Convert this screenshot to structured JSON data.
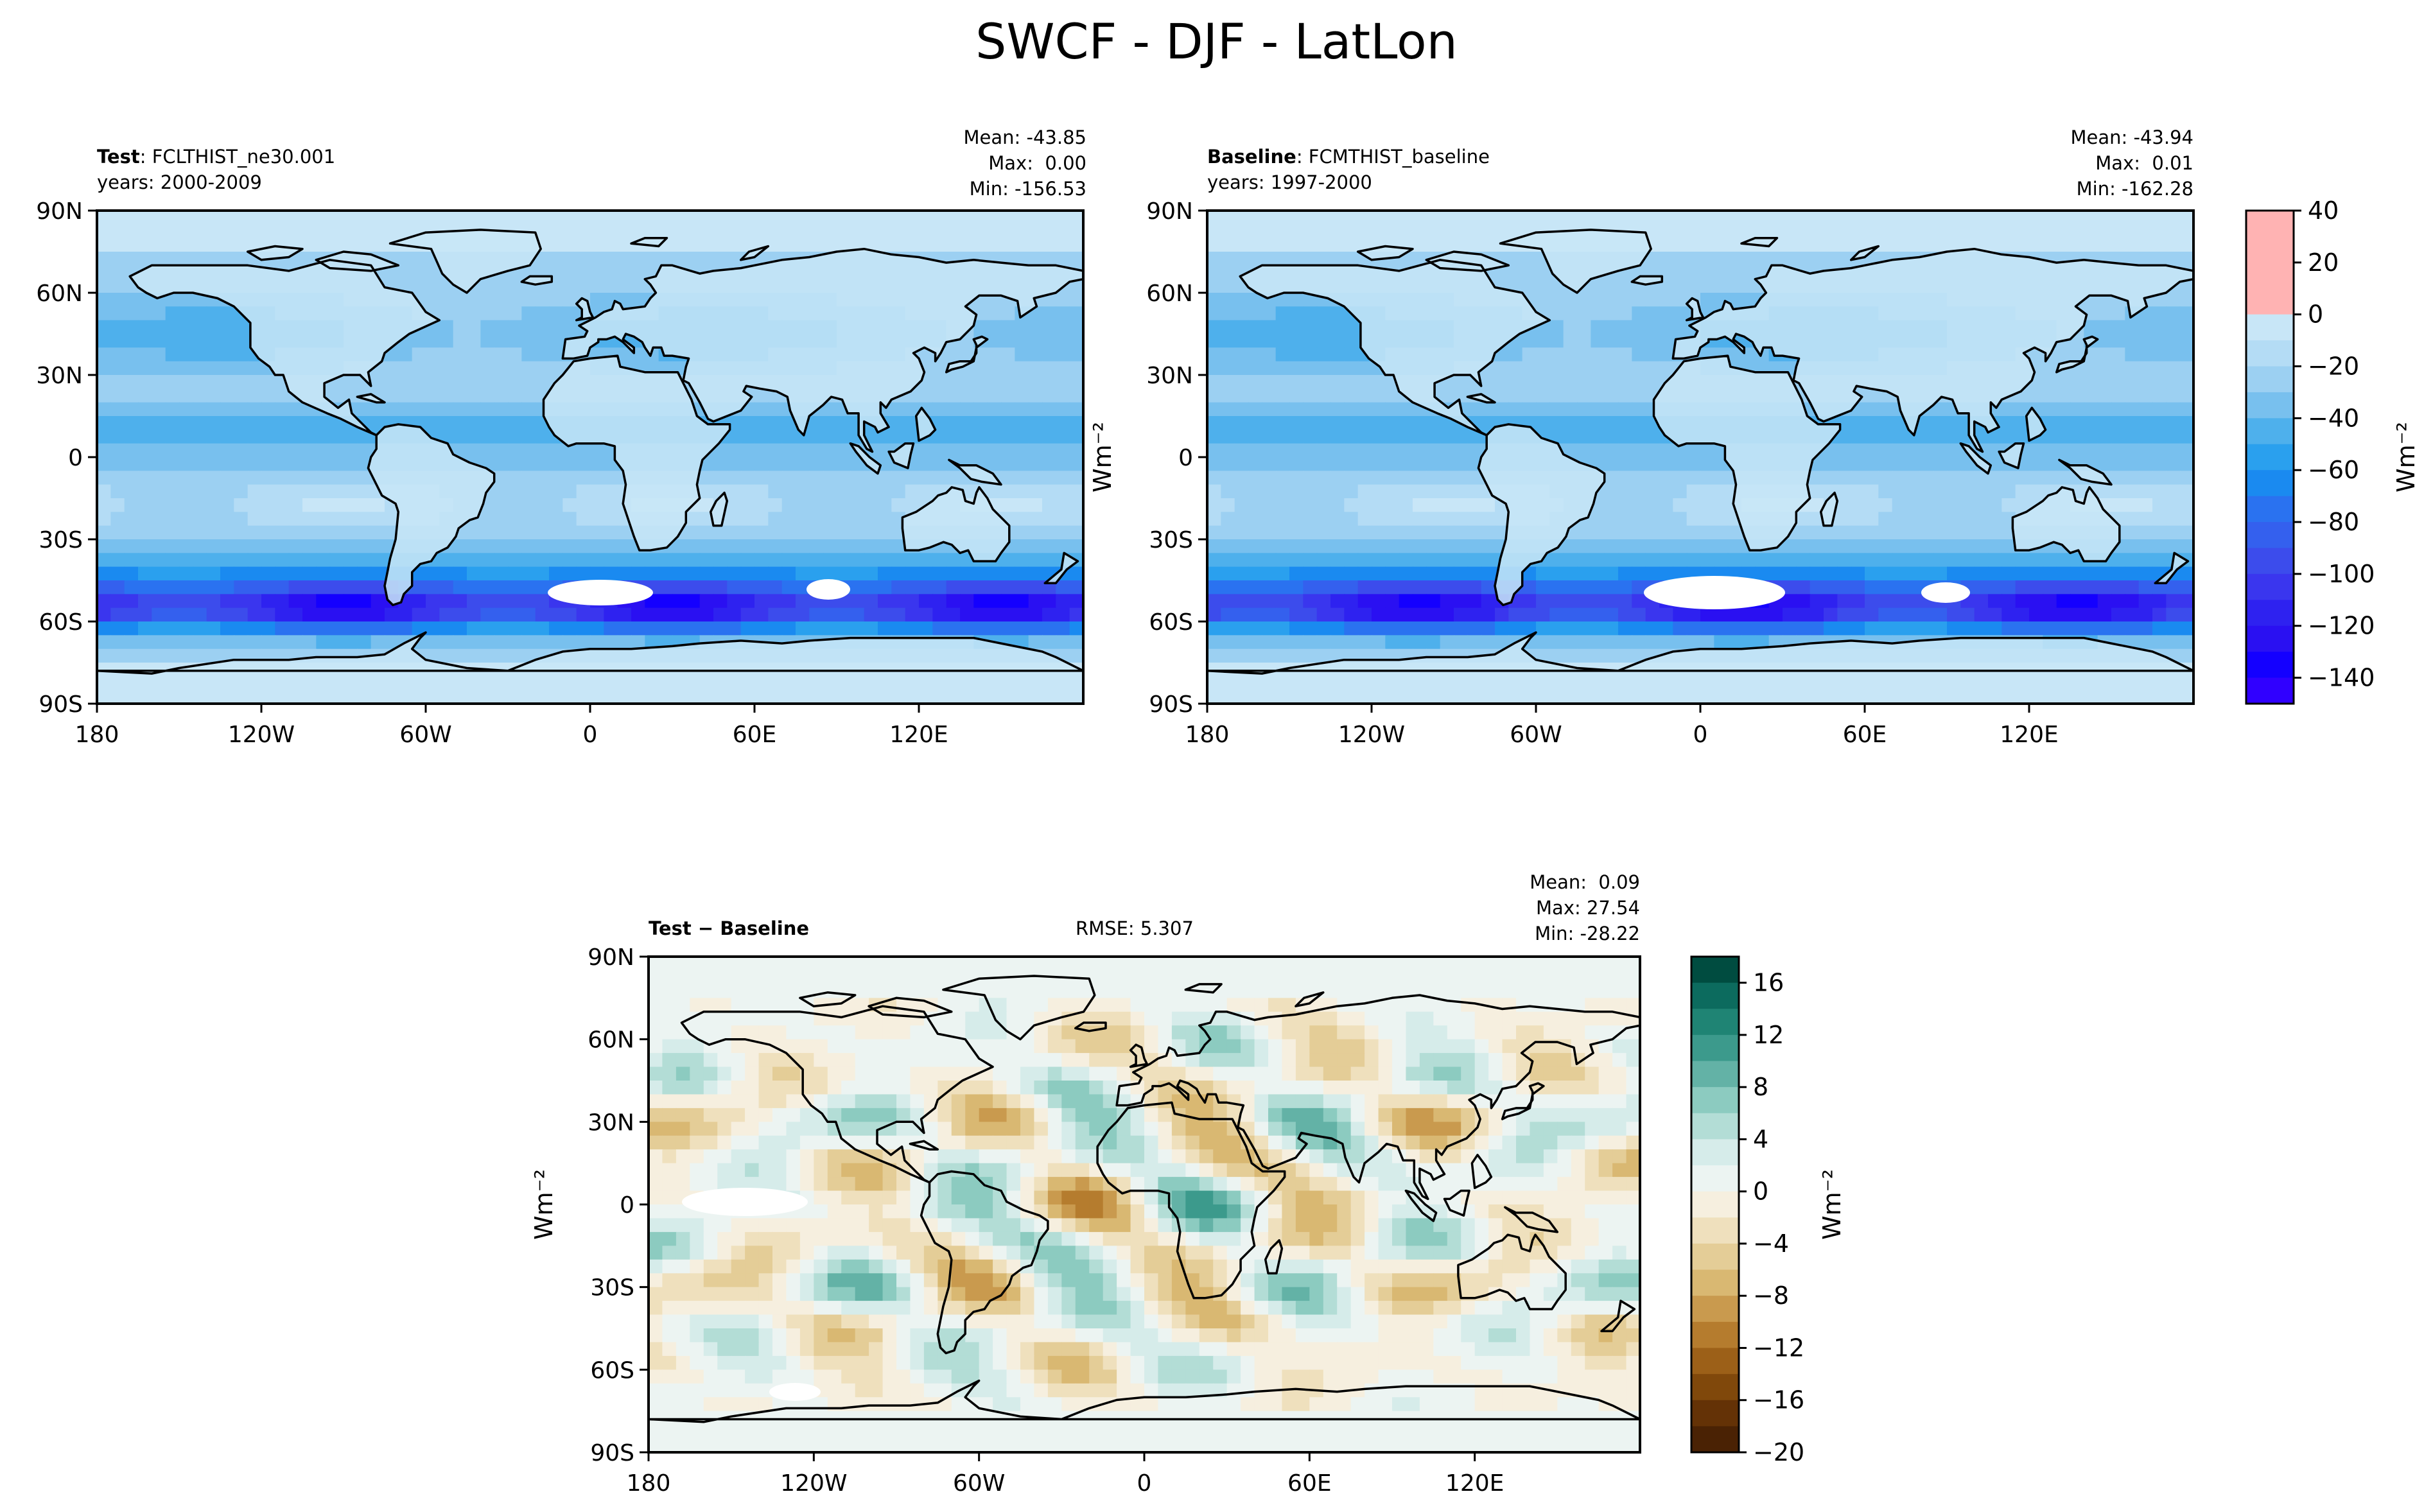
{
  "title": "SWCF - DJF - LatLon",
  "panels": {
    "test": {
      "label_bold": "Test",
      "label_rest": ": FCLTHIST_ne30.001",
      "years": "years: 2000-2009",
      "stats": {
        "mean": "Mean: -43.85",
        "max": "Max:  0.00",
        "min": "Min: -156.53"
      }
    },
    "baseline": {
      "label_bold": "Baseline",
      "label_rest": ": FCMTHIST_baseline",
      "years": "years: 1997-2000",
      "stats": {
        "mean": "Mean: -43.94",
        "max": "Max:  0.01",
        "min": "Min: -162.28"
      }
    },
    "diff": {
      "label": "Test − Baseline",
      "rmse": "RMSE: 5.307",
      "stats": {
        "mean": "Mean:  0.09",
        "max": "Max: 27.54",
        "min": "Min: -28.22"
      }
    }
  },
  "chart_data": [
    {
      "type": "heatmap",
      "name": "test",
      "xlabel": "",
      "ylabel": "",
      "x_ticks": [
        "180",
        "120W",
        "60W",
        "0",
        "60E",
        "120E"
      ],
      "y_ticks": [
        "90N",
        "60N",
        "30N",
        "0",
        "30S",
        "60S",
        "90S"
      ],
      "xlim": [
        -180,
        180
      ],
      "ylim": [
        -90,
        90
      ],
      "units": "Wm$^{-2}$"
    },
    {
      "type": "heatmap",
      "name": "baseline",
      "xlabel": "",
      "ylabel": "",
      "x_ticks": [
        "180",
        "120W",
        "60W",
        "0",
        "60E",
        "120E"
      ],
      "y_ticks": [
        "90N",
        "60N",
        "30N",
        "0",
        "30S",
        "60S",
        "90S"
      ],
      "xlim": [
        -180,
        180
      ],
      "ylim": [
        -90,
        90
      ],
      "units": "Wm$^{-2}$"
    },
    {
      "type": "heatmap",
      "name": "difference",
      "xlabel": "",
      "ylabel": "",
      "x_ticks": [
        "180",
        "120W",
        "60W",
        "0",
        "60E",
        "120E"
      ],
      "y_ticks": [
        "90N",
        "60N",
        "30N",
        "0",
        "30S",
        "60S",
        "90S"
      ],
      "xlim": [
        -180,
        180
      ],
      "ylim": [
        -90,
        90
      ],
      "units": "Wm$^{-2}$"
    }
  ],
  "colorbars": {
    "main": {
      "label": "Wm⁻²",
      "tick_labels": [
        "40",
        "20",
        "0",
        "−20",
        "−40",
        "−60",
        "−80",
        "−100",
        "−120",
        "−140"
      ],
      "levels": [
        40,
        20,
        0,
        -10,
        -20,
        -30,
        -40,
        -50,
        -60,
        -70,
        -80,
        -90,
        -100,
        -110,
        -120,
        -130,
        -140,
        -150
      ],
      "colors": [
        "#ffb3b3",
        "#ffb3b3",
        "#c8e6f7",
        "#b4dcf5",
        "#9cd0f2",
        "#78c0ee",
        "#4eb0ec",
        "#2aa0ee",
        "#1a8af0",
        "#2a72f0",
        "#3460ee",
        "#3c4cec",
        "#3a36ee",
        "#2e22f0",
        "#2a10f2",
        "#1400ff",
        "#3000ff"
      ]
    },
    "diff": {
      "label": "Wm⁻²",
      "tick_labels": [
        "16",
        "12",
        "8",
        "4",
        "0",
        "−4",
        "−8",
        "−12",
        "−16",
        "−20"
      ],
      "levels": [
        18,
        16,
        14,
        12,
        10,
        8,
        6,
        4,
        2,
        0,
        -2,
        -4,
        -6,
        -8,
        -10,
        -12,
        -14,
        -16,
        -18,
        -20
      ],
      "colors": [
        "#004c40",
        "#0c6b5e",
        "#1f8474",
        "#3c9a8c",
        "#63b2a6",
        "#8ccbc0",
        "#b3ddd6",
        "#d6ecea",
        "#ecf4f2",
        "#f6efdf",
        "#efe0bd",
        "#e4cd97",
        "#d9b872",
        "#c99a4e",
        "#b57c2e",
        "#9c6018",
        "#80480b",
        "#643206",
        "#4a2204"
      ]
    }
  },
  "colors": {
    "land_mask": "#c8e6f7",
    "diff_background": "#f5f1e4"
  }
}
